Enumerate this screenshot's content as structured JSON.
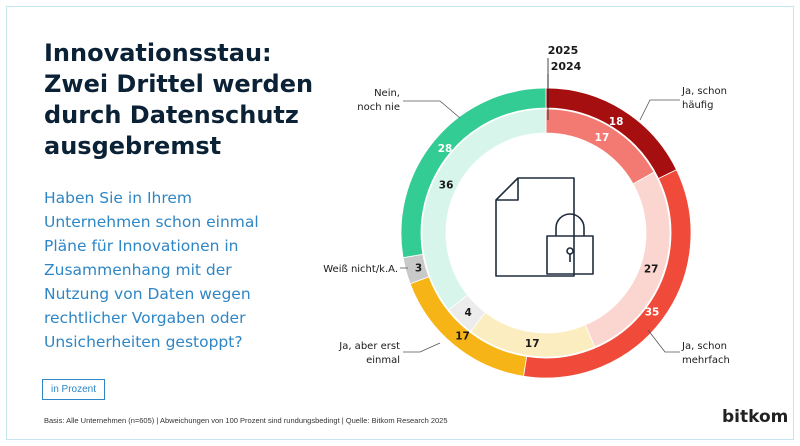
{
  "title": "Innovationsstau: Zwei Drittel werden durch Datenschutz ausgebremst",
  "question": "Haben Sie in Ihrem Unternehmen schon einmal Pläne für Innovationen in Zusammenhang mit der Nutzung von Daten wegen rechtlicher Vorgaben oder Unsicherheiten gestoppt?",
  "unit_label": "in Prozent",
  "source": "Basis: Alle Unternehmen (n=605) | Abweichungen von 100 Prozent sind rundungsbedingt | Quelle: Bitkom Research 2025",
  "logo": "bitkom",
  "center_icon": "document-lock-icon",
  "chart_data": {
    "type": "pie",
    "variant": "nested-donut",
    "categories": [
      "Ja, schon häufig",
      "Ja, schon mehrfach",
      "Ja, aber erst einmal",
      "Weiß nicht/k.A.",
      "Nein, noch nie"
    ],
    "series": [
      {
        "name": "2025",
        "ring": "outer",
        "values": [
          18,
          35,
          17,
          3,
          28
        ]
      },
      {
        "name": "2024",
        "ring": "inner",
        "values": [
          17,
          27,
          17,
          4,
          36
        ]
      }
    ],
    "colors": {
      "outer": [
        "#a50f0f",
        "#f04b3a",
        "#f7b417",
        "#c9c9c9",
        "#33cc95"
      ],
      "inner": [
        "#f27a72",
        "#fbd5cf",
        "#fcedc0",
        "#ececec",
        "#d7f5ea"
      ],
      "inner_value_text": [
        "#ffffff",
        "#1a1a1a",
        "#1a1a1a",
        "#1a1a1a",
        "#1a1a1a"
      ]
    },
    "year_labels": [
      "2025",
      "2024"
    ]
  }
}
